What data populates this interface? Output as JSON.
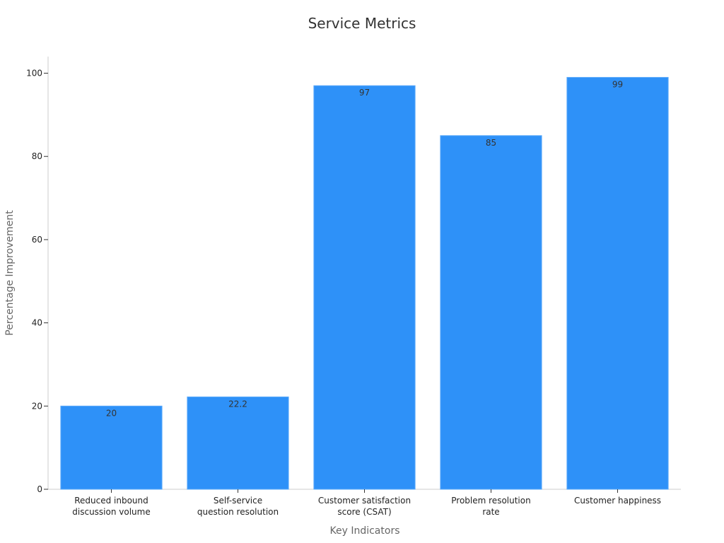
{
  "chart_data": {
    "type": "bar",
    "title": "Service Metrics",
    "xlabel": "Key Indicators",
    "ylabel": "Percentage Improvement",
    "categories": [
      [
        "Reduced inbound",
        "discussion volume"
      ],
      [
        "Self-service",
        "question resolution"
      ],
      [
        "Customer satisfaction",
        "score (CSAT)"
      ],
      [
        "Problem resolution",
        "rate"
      ],
      [
        "Customer happiness"
      ]
    ],
    "values": [
      20,
      22.2,
      97,
      85,
      99
    ],
    "data_labels": [
      "20",
      "22.2",
      "97",
      "85",
      "99"
    ],
    "ylim": [
      0,
      104
    ],
    "yticks": [
      0,
      20,
      40,
      60,
      80,
      100
    ],
    "grid": false,
    "bar_color": "#2E91F8"
  }
}
